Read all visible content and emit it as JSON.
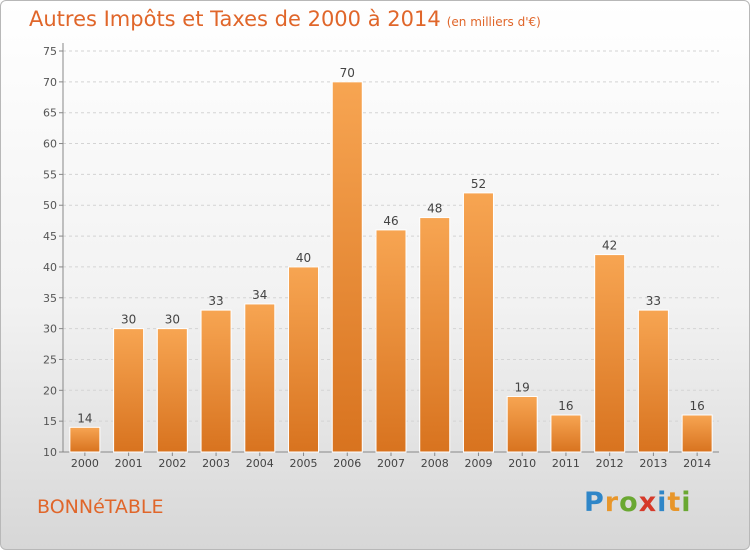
{
  "chart_data": {
    "type": "bar",
    "title": "Autres Impôts et Taxes de 2000 à 2014",
    "subtitle": "(en milliers d'€)",
    "categories": [
      "2000",
      "2001",
      "2002",
      "2003",
      "2004",
      "2005",
      "2006",
      "2007",
      "2008",
      "2009",
      "2010",
      "2011",
      "2012",
      "2013",
      "2014"
    ],
    "values": [
      14,
      30,
      30,
      33,
      34,
      40,
      70,
      46,
      48,
      52,
      19,
      16,
      42,
      33,
      16
    ],
    "ylim": [
      10,
      75
    ],
    "yticks": [
      10,
      15,
      20,
      25,
      30,
      35,
      40,
      45,
      50,
      55,
      60,
      65,
      70,
      75
    ],
    "grid": true,
    "bar_color": "#f29a42",
    "xlabel": "",
    "ylabel": ""
  },
  "place_name": "BONNéTABLE",
  "logo": {
    "letters": [
      "P",
      "r",
      "o",
      "x",
      "i",
      "t",
      "i"
    ],
    "colors": [
      "#2f86c8",
      "#e8962a",
      "#6aa832",
      "#d63a2a",
      "#2f86c8",
      "#e8962a",
      "#6aa832"
    ]
  }
}
